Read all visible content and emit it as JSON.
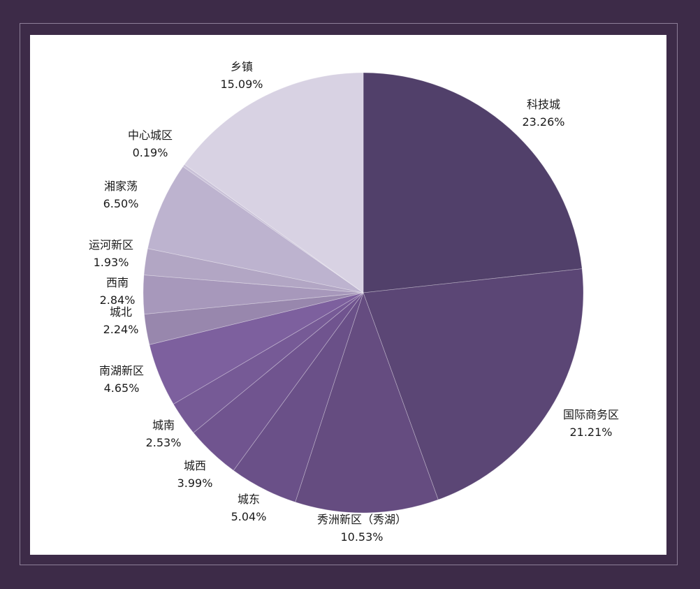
{
  "chart_data": {
    "type": "pie",
    "title": "",
    "start_angle_deg": 0,
    "direction": "clockwise",
    "slices": [
      {
        "label": "科技城",
        "value": 23.26,
        "pct": "23.26%",
        "color": "#51406a"
      },
      {
        "label": "国际商务区",
        "value": 21.21,
        "pct": "21.21%",
        "color": "#5b4675"
      },
      {
        "label": "秀洲新区（秀湖）",
        "value": 10.53,
        "pct": "10.53%",
        "color": "#654c80"
      },
      {
        "label": "城东",
        "value": 5.04,
        "pct": "5.04%",
        "color": "#6a5088"
      },
      {
        "label": "城西",
        "value": 3.99,
        "pct": "3.99%",
        "color": "#70548f"
      },
      {
        "label": "城南",
        "value": 2.53,
        "pct": "2.53%",
        "color": "#765a96"
      },
      {
        "label": "南湖新区",
        "value": 4.65,
        "pct": "4.65%",
        "color": "#7d609e"
      },
      {
        "label": "城北",
        "value": 2.24,
        "pct": "2.24%",
        "color": "#9887ad"
      },
      {
        "label": "西南",
        "value": 2.84,
        "pct": "2.84%",
        "color": "#a798bb"
      },
      {
        "label": "运河新区",
        "value": 1.93,
        "pct": "1.93%",
        "color": "#b2a6c4"
      },
      {
        "label": "湘家荡",
        "value": 6.5,
        "pct": "6.50%",
        "color": "#bdb3cf"
      },
      {
        "label": "中心城区",
        "value": 0.19,
        "pct": "0.19%",
        "color": "#c9c1d8"
      },
      {
        "label": "乡镇",
        "value": 15.09,
        "pct": "15.09%",
        "color": "#d8d2e3"
      }
    ]
  }
}
